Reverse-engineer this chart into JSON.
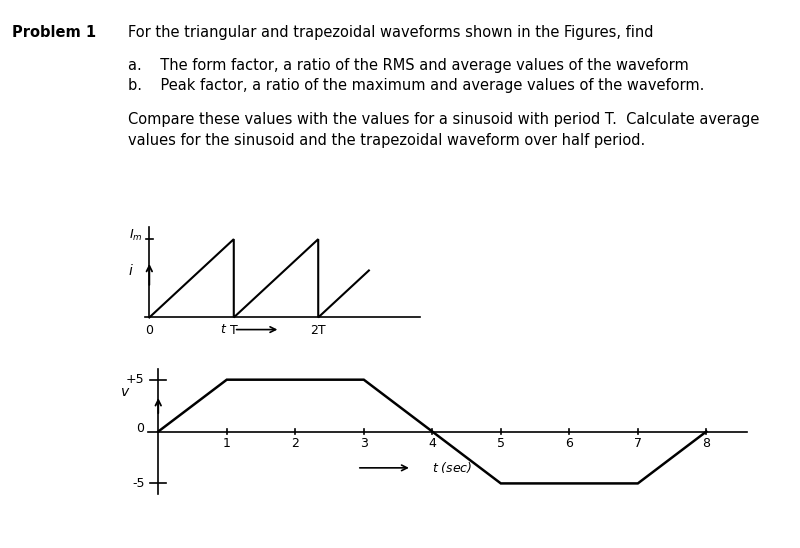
{
  "problem_label": "Problem 1",
  "title_desc": "For the triangular and trapezoidal waveforms shown in the Figures, find",
  "item_a": "a.    The form factor, a ratio of the RMS and average values of the waveform",
  "item_b": "b.    Peak factor, a ratio of the maximum and average values of the waveform.",
  "compare_text1": "Compare these values with the values for a sinusoid with period T.  Calculate average",
  "compare_text2": "values for the sinusoid and the trapezoidal waveform over half period.",
  "tri_wave_x": [
    0,
    1,
    1,
    2,
    2,
    2.55
  ],
  "tri_wave_y": [
    0,
    1,
    0,
    1,
    0,
    0.55
  ],
  "trap_wave_x": [
    0,
    1,
    3,
    4,
    5,
    7,
    8
  ],
  "trap_wave_y": [
    0,
    5,
    5,
    0,
    -5,
    -5,
    0
  ],
  "bg": "#ffffff",
  "black": "#000000"
}
